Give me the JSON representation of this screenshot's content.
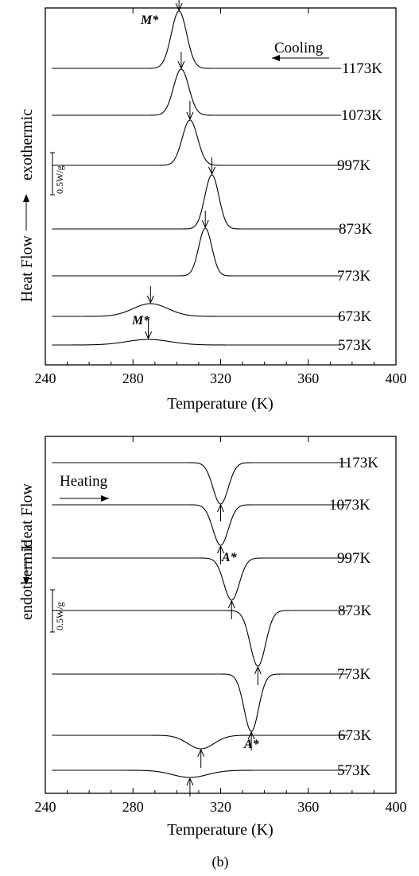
{
  "chart_data": [
    {
      "type": "line",
      "title": "",
      "xlabel": "Temperature (K)",
      "ylabel": "Heat Flow",
      "ylabel_direction": "exothermic",
      "direction_label": "Cooling",
      "scale_bar_label": "0.5W/g",
      "xlim": [
        240,
        400
      ],
      "x_ticks": [
        "240",
        "280",
        "320",
        "360",
        "400"
      ],
      "annotations": [
        "M*",
        "M*"
      ],
      "series": [
        {
          "name": "1173K",
          "peak_x": 301,
          "peak_height": 1.0,
          "width": 3.5,
          "peak_type": "exotherm"
        },
        {
          "name": "1073K",
          "peak_x": 302,
          "peak_height": 0.85,
          "width": 3.5,
          "peak_type": "exotherm"
        },
        {
          "name": "997K",
          "peak_x": 306,
          "peak_height": 0.85,
          "width": 3.5,
          "peak_type": "exotherm"
        },
        {
          "name": "873K",
          "peak_x": 316,
          "peak_height": 1.0,
          "width": 3.2,
          "peak_type": "exotherm"
        },
        {
          "name": "773K",
          "peak_x": 313,
          "peak_height": 0.85,
          "width": 3.0,
          "peak_type": "exotherm"
        },
        {
          "name": "673K",
          "peak_x": 288,
          "peak_height": 0.25,
          "width": 8,
          "peak_type": "exotherm"
        },
        {
          "name": "573K",
          "peak_x": 287,
          "peak_height": 0.1,
          "width": 10,
          "peak_type": "exotherm"
        }
      ]
    },
    {
      "type": "line",
      "title": "",
      "xlabel": "Temperature (K)",
      "ylabel": "Heat Flow",
      "ylabel_direction": "endothermic",
      "direction_label": "Heating",
      "scale_bar_label": "0.5W/g",
      "xlim": [
        240,
        400
      ],
      "x_ticks": [
        "240",
        "280",
        "320",
        "360",
        "400"
      ],
      "annotations": [
        "A*",
        "A*"
      ],
      "caption": "(b)",
      "series": [
        {
          "name": "1173K",
          "peak_x": 320,
          "peak_height": 0.9,
          "width": 3.5,
          "peak_type": "endotherm"
        },
        {
          "name": "1073K",
          "peak_x": 320,
          "peak_height": 0.9,
          "width": 3.5,
          "peak_type": "endotherm"
        },
        {
          "name": "997K",
          "peak_x": 325,
          "peak_height": 0.9,
          "width": 3.5,
          "peak_type": "endotherm"
        },
        {
          "name": "873K",
          "peak_x": 337,
          "peak_height": 1.0,
          "width": 3.5,
          "peak_type": "endotherm"
        },
        {
          "name": "773K",
          "peak_x": 334,
          "peak_height": 0.95,
          "width": 3.3,
          "peak_type": "endotherm"
        },
        {
          "name": "673K",
          "peak_x": 311,
          "peak_height": 0.3,
          "width": 6,
          "peak_type": "endotherm"
        },
        {
          "name": "573K",
          "peak_x": 306,
          "peak_height": 0.12,
          "width": 8,
          "peak_type": "endotherm"
        }
      ]
    }
  ]
}
